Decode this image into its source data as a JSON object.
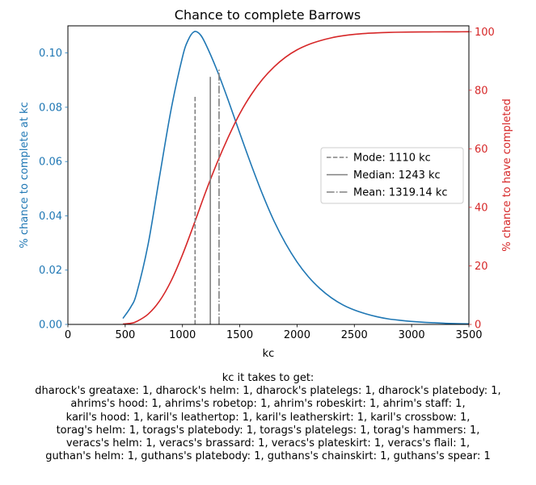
{
  "chart_data": {
    "type": "line",
    "title": "Chance to complete Barrows",
    "xlabel": "kc",
    "ylabel_left": "% chance to complete at kc",
    "ylabel_right": "% chance to have completed",
    "xlim": [
      0,
      3500
    ],
    "ylim_left": [
      0,
      0.11
    ],
    "ylim_right": [
      0,
      102
    ],
    "x_ticks": [
      "0",
      "500",
      "1000",
      "1500",
      "2000",
      "2500",
      "3000",
      "3500"
    ],
    "y_ticks_left": [
      "0.00",
      "0.02",
      "0.04",
      "0.06",
      "0.08",
      "0.10"
    ],
    "y_ticks_right": [
      "0",
      "20",
      "40",
      "60",
      "80",
      "100"
    ],
    "colors": {
      "left": "#1f77b4",
      "right": "#d62728",
      "markers": "#808080"
    },
    "grid": false,
    "legend_position": "center-right",
    "series": [
      {
        "axis": "left",
        "x": [
          480,
          550,
          600,
          700,
          800,
          900,
          1000,
          1050,
          1100,
          1150,
          1200,
          1300,
          1400,
          1500,
          1600,
          1700,
          1800,
          1900,
          2000,
          2100,
          2200,
          2300,
          2400,
          2500,
          2600,
          2700,
          2800,
          2900,
          3000,
          3100,
          3200,
          3300,
          3400,
          3500
        ],
        "values": [
          0.0022,
          0.0065,
          0.0115,
          0.0295,
          0.0545,
          0.079,
          0.0985,
          0.1048,
          0.1078,
          0.107,
          0.1035,
          0.0938,
          0.0825,
          0.0705,
          0.0588,
          0.0478,
          0.038,
          0.0298,
          0.023,
          0.0175,
          0.0132,
          0.0098,
          0.0072,
          0.0053,
          0.0039,
          0.0028,
          0.002,
          0.0015,
          0.0011,
          0.0008,
          0.0006,
          0.0004,
          0.0003,
          0.0002
        ]
      },
      {
        "axis": "right",
        "x": [
          480,
          550,
          600,
          700,
          800,
          900,
          1000,
          1100,
          1200,
          1300,
          1400,
          1500,
          1600,
          1700,
          1800,
          1900,
          2000,
          2100,
          2200,
          2300,
          2400,
          2500,
          2600,
          2700,
          2800,
          2900,
          3000,
          3100,
          3200,
          3300,
          3400,
          3500
        ],
        "values": [
          0.1,
          0.4,
          1.0,
          3.5,
          8.0,
          14.8,
          23.8,
          34.2,
          45.0,
          55.0,
          64.0,
          72.0,
          78.5,
          83.8,
          88.0,
          91.3,
          93.8,
          95.6,
          96.9,
          97.9,
          98.6,
          99.1,
          99.4,
          99.6,
          99.75,
          99.83,
          99.88,
          99.91,
          99.93,
          99.95,
          99.96,
          99.97
        ]
      }
    ],
    "markers": [
      {
        "label": "Mode: 1110 kc",
        "x": 1110,
        "top": 0.084,
        "style": "dashed"
      },
      {
        "label": "Median: 1243 kc",
        "x": 1243,
        "top": 0.0912,
        "style": "solid"
      },
      {
        "label": "Mean: 1319.14 kc",
        "x": 1319.14,
        "top": 0.094,
        "style": "dashdot"
      }
    ]
  },
  "caption": {
    "heading": "kc it takes to get:",
    "lines": [
      "dharock's greataxe: 1,  dharock's helm: 1,  dharock's platelegs: 1,  dharock's platebody: 1,",
      "ahrims's hood: 1,  ahrims's robetop: 1,  ahrim's robeskirt: 1,  ahrim's staff: 1,",
      "karil's hood: 1,  karil's leathertop: 1,  karil's leatherskirt: 1,  karil's crossbow: 1,",
      "torag's helm: 1,  torags's platebody: 1,  torags's platelegs: 1,  torag's hammers: 1,",
      "veracs's helm: 1,  veracs's brassard: 1,  veracs's plateskirt: 1,  veracs's flail: 1,",
      "guthan's helm: 1,  guthans's platebody: 1,  guthans's chainskirt: 1,  guthans's spear: 1"
    ]
  }
}
